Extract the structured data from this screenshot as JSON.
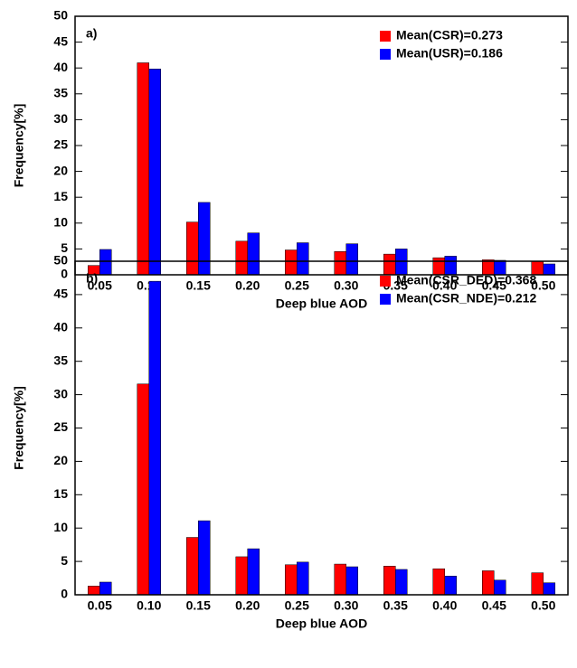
{
  "chart_data": [
    {
      "type": "bar",
      "panel_label": "a)",
      "ylabel": "Frequency[%]",
      "xlabel": "Deep blue AOD",
      "categories": [
        "0.05",
        "0.10",
        "0.15",
        "0.20",
        "0.25",
        "0.30",
        "0.35",
        "0.40",
        "0.45",
        "0.50"
      ],
      "series": [
        {
          "name": "Mean(CSR)=0.273",
          "color": "#ff0000",
          "values": [
            1.8,
            41,
            10.2,
            6.5,
            4.8,
            4.5,
            4.0,
            3.3,
            2.9,
            2.6
          ]
        },
        {
          "name": "Mean(USR)=0.186",
          "color": "#0000ff",
          "values": [
            4.9,
            39.8,
            14,
            8.1,
            6.2,
            6.0,
            5.0,
            3.6,
            2.8,
            2.1
          ]
        }
      ],
      "ylim": [
        0,
        50
      ],
      "yticks": [
        0,
        5,
        10,
        15,
        20,
        25,
        30,
        35,
        40,
        45,
        50
      ],
      "legend": "upper right"
    },
    {
      "type": "bar",
      "panel_label": "b)",
      "ylabel": "Frequency[%]",
      "xlabel": "Deep blue AOD",
      "categories": [
        "0.05",
        "0.10",
        "0.15",
        "0.20",
        "0.25",
        "0.30",
        "0.35",
        "0.40",
        "0.45",
        "0.50"
      ],
      "series": [
        {
          "name": "Mean(CSR_DED)=0.368",
          "color": "#ff0000",
          "values": [
            1.3,
            31.6,
            8.6,
            5.7,
            4.5,
            4.6,
            4.3,
            3.9,
            3.6,
            3.3
          ]
        },
        {
          "name": "Mean(CSR_NDE)=0.212",
          "color": "#0000ff",
          "values": [
            1.9,
            47,
            11.1,
            6.9,
            4.9,
            4.2,
            3.8,
            2.8,
            2.2,
            1.8
          ]
        }
      ],
      "ylim": [
        0,
        50
      ],
      "yticks": [
        0,
        5,
        10,
        15,
        20,
        25,
        30,
        35,
        40,
        45,
        50
      ],
      "legend": "upper right"
    }
  ]
}
